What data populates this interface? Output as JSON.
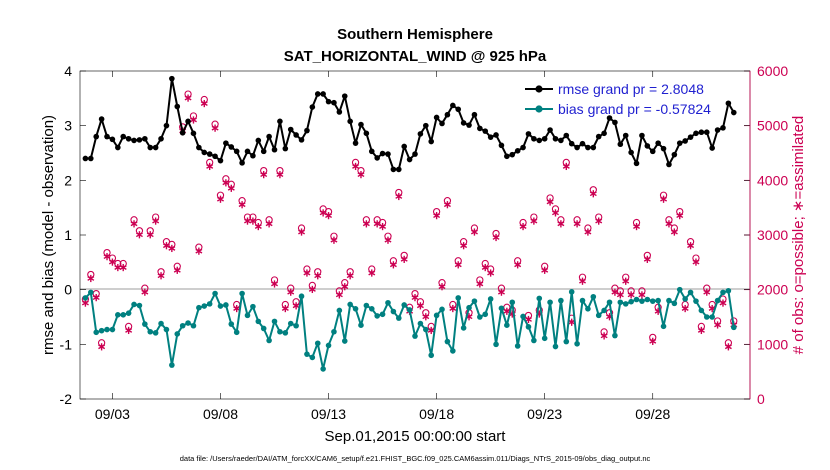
{
  "chart_data": {
    "type": "line",
    "title": "Southern Hemisphere",
    "subtitle": "SAT_HORIZONTAL_WIND @ 925 hPa",
    "xlabel": "Sep.01,2015 00:00:00 start",
    "ylabel_left": "rmse and bias (model - observation)",
    "ylabel_right": "# of obs: o=possible; ∗=assimilated",
    "ylim_left": [
      -2,
      4
    ],
    "ylim_right": [
      0,
      6000
    ],
    "xlim_days": [
      1.5,
      32.5
    ],
    "yticks_left": [
      "-2",
      "-1",
      "0",
      "1",
      "2",
      "3",
      "4"
    ],
    "yticks_right": [
      "0",
      "1000",
      "2000",
      "3000",
      "4000",
      "5000",
      "6000"
    ],
    "xticks": [
      {
        "day": 3,
        "label": "09/03"
      },
      {
        "day": 8,
        "label": "09/08"
      },
      {
        "day": 13,
        "label": "09/13"
      },
      {
        "day": 18,
        "label": "09/18"
      },
      {
        "day": 23,
        "label": "09/23"
      },
      {
        "day": 28,
        "label": "09/28"
      }
    ],
    "footnote": "data file: /Users/raeder/DAI/ATM_forcXX/CAM6_setup/f.e21.FHIST_BGC.f09_025.CAM6assim.011/Diags_NTrS_2015-09/obs_diag_output.nc",
    "colors": {
      "rmse": "#000000",
      "bias": "#008080",
      "obs": "#cc0052",
      "zero_line": "#b0b0b0"
    },
    "series": [
      {
        "name": "rmse grand pr = 2.8048",
        "x_start_day": 1.75,
        "x_step_day": 0.25,
        "values": [
          2.4,
          2.4,
          2.8,
          3.12,
          2.8,
          2.75,
          2.6,
          2.8,
          2.76,
          2.73,
          2.74,
          2.76,
          2.6,
          2.6,
          2.76,
          3.0,
          3.86,
          3.35,
          2.87,
          3.08,
          2.86,
          2.6,
          2.51,
          2.48,
          2.44,
          2.36,
          2.68,
          2.61,
          2.53,
          2.32,
          2.53,
          2.45,
          2.73,
          2.53,
          2.8,
          2.56,
          3.08,
          2.58,
          2.93,
          2.83,
          2.74,
          2.91,
          3.34,
          3.58,
          3.58,
          3.44,
          3.42,
          3.25,
          3.54,
          3.08,
          2.68,
          3.02,
          2.86,
          2.53,
          2.41,
          2.49,
          2.48,
          2.2,
          2.2,
          2.62,
          2.38,
          2.48,
          2.85,
          3.0,
          2.71,
          3.15,
          3.04,
          3.2,
          3.37,
          3.3,
          3.05,
          3.01,
          3.2,
          2.95,
          2.9,
          2.79,
          2.83,
          2.64,
          2.44,
          2.47,
          2.54,
          2.6,
          2.85,
          2.76,
          2.73,
          2.76,
          2.92,
          2.76,
          2.73,
          2.82,
          2.67,
          2.6,
          2.67,
          2.6,
          2.6,
          2.8,
          2.86,
          3.14,
          3.06,
          2.66,
          2.82,
          2.51,
          2.31,
          2.82,
          2.63,
          2.53,
          2.68,
          2.58,
          2.29,
          2.47,
          2.68,
          2.72,
          2.79,
          2.86,
          2.88,
          2.88,
          2.59,
          2.92,
          2.96,
          3.41,
          3.24
        ]
      },
      {
        "name": "bias grand pr = -0.57824",
        "x_start_day": 1.75,
        "x_step_day": 0.25,
        "values": [
          -0.15,
          -0.05,
          -0.78,
          -0.75,
          -0.73,
          -0.73,
          -0.46,
          -0.46,
          -0.43,
          -0.27,
          -0.29,
          -0.63,
          -0.77,
          -0.79,
          -0.62,
          -0.73,
          -1.38,
          -0.81,
          -0.66,
          -0.61,
          -0.66,
          -0.33,
          -0.3,
          -0.26,
          -0.07,
          -0.3,
          -0.28,
          -0.63,
          -0.78,
          -0.07,
          -0.47,
          -0.31,
          -0.58,
          -0.71,
          -0.93,
          -0.58,
          -0.77,
          -0.79,
          -0.62,
          -0.66,
          -0.12,
          -1.18,
          -1.24,
          -0.98,
          -1.45,
          -1.02,
          -0.77,
          -0.38,
          -0.94,
          -0.27,
          -0.35,
          -0.65,
          -0.29,
          -0.35,
          -0.48,
          -0.45,
          -0.24,
          -0.4,
          -0.52,
          -0.28,
          -0.37,
          -0.85,
          -0.62,
          -0.73,
          -1.2,
          -0.47,
          -0.36,
          -0.95,
          -1.12,
          -0.15,
          -0.7,
          -0.33,
          -0.21,
          -0.5,
          -0.45,
          -0.17,
          -1.0,
          -0.34,
          -0.65,
          -0.23,
          -1.03,
          -0.49,
          -0.68,
          -0.93,
          -0.16,
          -0.89,
          -0.23,
          -1.04,
          -0.2,
          -0.95,
          -0.04,
          -0.99,
          -0.2,
          -0.35,
          -0.13,
          -0.47,
          -0.38,
          -0.23,
          -0.84,
          -0.23,
          -0.26,
          -0.22,
          -0.18,
          -0.21,
          -0.18,
          -0.21,
          -0.2,
          -0.67,
          -0.2,
          -0.25,
          0.0,
          -0.17,
          -0.05,
          -0.21,
          -0.38,
          -0.5,
          -0.5,
          -0.2,
          -0.05,
          -0.02,
          -0.69
        ]
      }
    ],
    "obs_possible_values": [
      1800,
      2250,
      1900,
      1000,
      2650,
      2550,
      2450,
      2450,
      1300,
      3250,
      3050,
      2000,
      3050,
      3300,
      2300,
      2850,
      2800,
      2400,
      4950,
      5550,
      5150,
      2750,
      5450,
      4300,
      5000,
      3700,
      4000,
      3900,
      1700,
      3600,
      3300,
      3300,
      3200,
      4150,
      3250,
      2150,
      4150,
      1700,
      2000,
      1750,
      3100,
      2350,
      2050,
      2300,
      3450,
      3400,
      2950,
      1950,
      2100,
      2300,
      4300,
      4150,
      3250,
      2350,
      3250,
      3200,
      2950,
      2500,
      3750,
      2600,
      1650,
      1900,
      1750,
      1550,
      1300,
      3400,
      2100,
      3600,
      1700,
      2500,
      2850,
      1550,
      3100,
      2150,
      2450,
      2350,
      3000,
      2000,
      1650,
      1600,
      2500,
      3200,
      1500,
      3300,
      1600,
      2400,
      3650,
      3450,
      3250,
      4300,
      1450,
      3250,
      2200,
      3100,
      3800,
      3300,
      1200,
      1550,
      2000,
      1950,
      2200,
      1950,
      3200,
      1950,
      2600,
      1100,
      1650,
      3700,
      3250,
      3100,
      3400,
      1700,
      2850,
      2550,
      1300,
      2000,
      1700,
      1400,
      1800,
      1000,
      1400
    ]
  }
}
